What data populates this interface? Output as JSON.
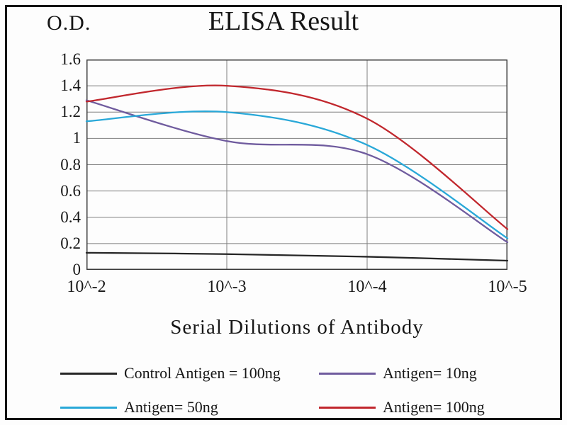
{
  "chart_data": {
    "type": "line",
    "title": "ELISA Result",
    "ylabel": "O.D.",
    "xlabel": "Serial Dilutions  of Antibody",
    "x_tick_labels": [
      "10^-2",
      "10^-3",
      "10^-4",
      "10^-5"
    ],
    "y_tick_labels": [
      "1.6",
      "1.4",
      "1.2",
      "1",
      "0.8",
      "0.6",
      "0.4",
      "0.2",
      "0"
    ],
    "ylim": [
      0,
      1.6
    ],
    "grid": true,
    "legend_position": "bottom",
    "colors": {
      "grid": "#7f7f7f",
      "plot_border": "#3a3a3a",
      "frame_border": "#141414"
    },
    "categories": [
      "10^-2",
      "10^-3",
      "10^-4",
      "10^-5"
    ],
    "series": [
      {
        "name": "Control Antigen = 100ng",
        "color": "#262626",
        "values": [
          0.13,
          0.12,
          0.1,
          0.07
        ]
      },
      {
        "name": "Antigen= 10ng",
        "color": "#6f5b9e",
        "values": [
          1.29,
          0.98,
          0.88,
          0.21
        ]
      },
      {
        "name": "Antigen= 50ng",
        "color": "#29a8d8",
        "values": [
          1.13,
          1.2,
          0.95,
          0.24
        ]
      },
      {
        "name": "Antigen= 100ng",
        "color": "#c1272d",
        "values": [
          1.28,
          1.4,
          1.15,
          0.31
        ]
      }
    ]
  }
}
